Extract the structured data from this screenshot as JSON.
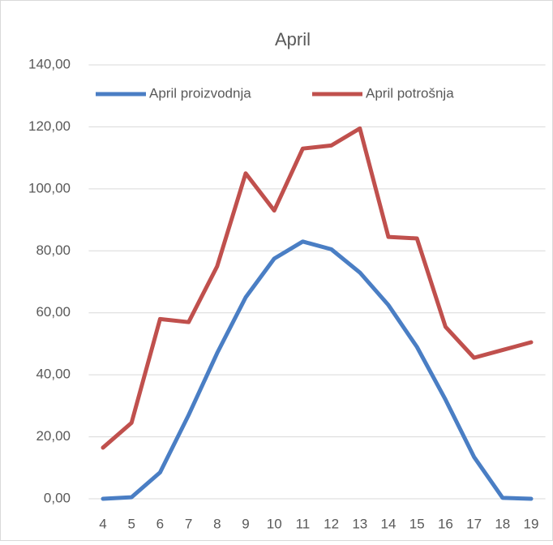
{
  "chart_data": {
    "type": "line",
    "title": "April",
    "categories": [
      "4",
      "5",
      "6",
      "7",
      "8",
      "9",
      "10",
      "11",
      "12",
      "13",
      "14",
      "15",
      "16",
      "17",
      "18",
      "19"
    ],
    "series": [
      {
        "name": "April proizvodnja",
        "color": "#4a7ec4",
        "values": [
          0,
          0.5,
          8.5,
          27,
          47,
          65,
          77.5,
          83,
          80.5,
          73,
          62.5,
          49,
          32,
          13.5,
          0.3,
          0
        ]
      },
      {
        "name": "April potrošnja",
        "color": "#c0504d",
        "values": [
          16.5,
          24.5,
          58,
          57,
          75,
          105,
          93,
          113,
          114,
          119.5,
          84.5,
          84,
          55.5,
          45.5,
          48,
          50.5
        ]
      }
    ],
    "ylim": [
      0,
      140
    ],
    "yticks": [
      {
        "value": 0,
        "label": "0,00"
      },
      {
        "value": 20,
        "label": "20,00"
      },
      {
        "value": 40,
        "label": "40,00"
      },
      {
        "value": 60,
        "label": "60,00"
      },
      {
        "value": 80,
        "label": "80,00"
      },
      {
        "value": 100,
        "label": "100,00"
      },
      {
        "value": 120,
        "label": "120,00"
      },
      {
        "value": 140,
        "label": "140,00"
      }
    ],
    "grid": true,
    "legend": "top"
  }
}
